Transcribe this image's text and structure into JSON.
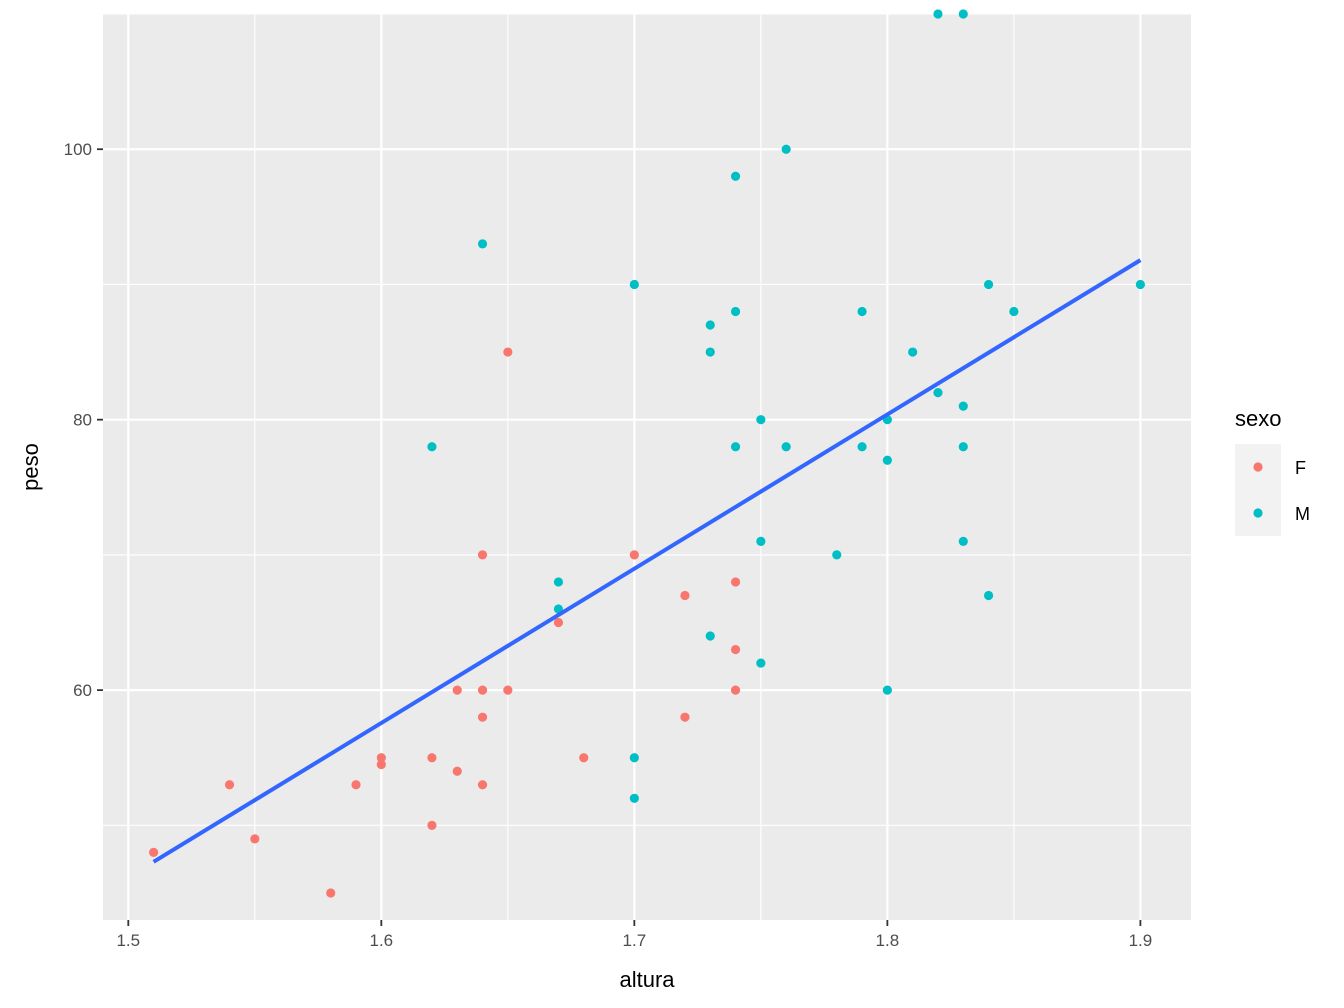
{
  "chart_data": {
    "type": "scatter",
    "xlabel": "altura",
    "ylabel": "peso",
    "xlim": [
      1.49,
      1.92
    ],
    "ylim": [
      43,
      110
    ],
    "x_ticks": [
      1.5,
      1.6,
      1.7,
      1.8,
      1.9
    ],
    "x_tick_labels": [
      "1.5",
      "1.6",
      "1.7",
      "1.8",
      "1.9"
    ],
    "y_ticks": [
      60,
      80,
      100
    ],
    "y_tick_labels": [
      "60",
      "80",
      "100"
    ],
    "grid": true,
    "legend": {
      "title": "sexo",
      "placement": "right"
    },
    "series": [
      {
        "name": "F",
        "color": "#F8766D",
        "points": [
          [
            1.51,
            48
          ],
          [
            1.54,
            53
          ],
          [
            1.55,
            49
          ],
          [
            1.58,
            45
          ],
          [
            1.59,
            53
          ],
          [
            1.6,
            55
          ],
          [
            1.6,
            54.5
          ],
          [
            1.62,
            55
          ],
          [
            1.62,
            50
          ],
          [
            1.63,
            60
          ],
          [
            1.63,
            54
          ],
          [
            1.64,
            70
          ],
          [
            1.64,
            60
          ],
          [
            1.64,
            58
          ],
          [
            1.64,
            53
          ],
          [
            1.65,
            85
          ],
          [
            1.65,
            60
          ],
          [
            1.67,
            65
          ],
          [
            1.68,
            55
          ],
          [
            1.7,
            70
          ],
          [
            1.72,
            67
          ],
          [
            1.72,
            58
          ],
          [
            1.74,
            68
          ],
          [
            1.74,
            63
          ],
          [
            1.74,
            60
          ]
        ]
      },
      {
        "name": "M",
        "color": "#00BFC4",
        "points": [
          [
            1.62,
            78
          ],
          [
            1.64,
            93
          ],
          [
            1.67,
            68
          ],
          [
            1.67,
            66
          ],
          [
            1.7,
            90
          ],
          [
            1.7,
            55
          ],
          [
            1.7,
            52
          ],
          [
            1.73,
            87
          ],
          [
            1.73,
            85
          ],
          [
            1.73,
            64
          ],
          [
            1.74,
            98
          ],
          [
            1.74,
            88
          ],
          [
            1.74,
            78
          ],
          [
            1.75,
            80
          ],
          [
            1.75,
            71
          ],
          [
            1.75,
            62
          ],
          [
            1.76,
            100
          ],
          [
            1.76,
            78
          ],
          [
            1.78,
            70
          ],
          [
            1.79,
            88
          ],
          [
            1.79,
            78
          ],
          [
            1.8,
            80
          ],
          [
            1.8,
            77
          ],
          [
            1.8,
            60
          ],
          [
            1.81,
            85
          ],
          [
            1.82,
            110
          ],
          [
            1.82,
            82
          ],
          [
            1.83,
            110
          ],
          [
            1.83,
            81
          ],
          [
            1.83,
            78
          ],
          [
            1.83,
            71
          ],
          [
            1.84,
            90
          ],
          [
            1.84,
            67
          ],
          [
            1.85,
            88
          ],
          [
            1.9,
            90
          ]
        ]
      }
    ],
    "trend_line": {
      "method": "linear",
      "color": "#3366FF",
      "from": [
        1.51,
        47.3
      ],
      "to": [
        1.9,
        91.8
      ]
    }
  }
}
